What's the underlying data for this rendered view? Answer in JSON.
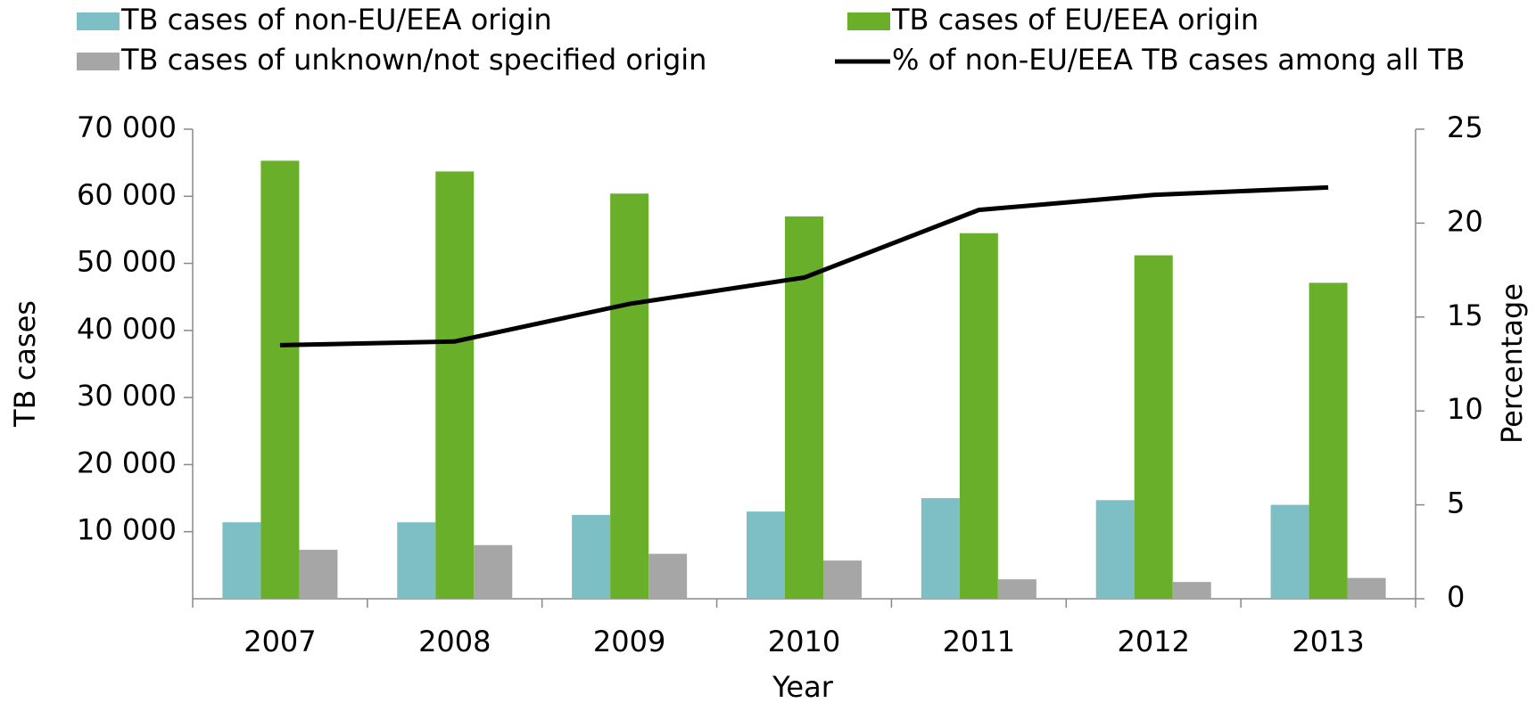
{
  "chart_data": {
    "type": "bar",
    "x_label": "Year",
    "y_label": "TB cases",
    "y2_label": "Percentage",
    "categories": [
      "2007",
      "2008",
      "2009",
      "2010",
      "2011",
      "2012",
      "2013"
    ],
    "series": [
      {
        "name": "TB cases of non-EU/EEA origin",
        "color": "#7dbfc4",
        "values": [
          11400,
          11400,
          12500,
          13000,
          15000,
          14700,
          14000
        ]
      },
      {
        "name": "TB cases of EU/EEA origin",
        "color": "#6aaf2a",
        "values": [
          65300,
          63700,
          60400,
          57000,
          54500,
          51200,
          47100
        ]
      },
      {
        "name": "TB cases of unknown/not specified origin",
        "color": "#a6a6a6",
        "values": [
          7300,
          8000,
          6700,
          5700,
          2900,
          2500,
          3100
        ]
      },
      {
        "name": "% of non-EU/EEA TB cases among all TB",
        "color": "#000000",
        "type": "line",
        "axis": "y2",
        "values": [
          13.5,
          13.7,
          15.7,
          17.1,
          20.7,
          21.5,
          21.9
        ]
      }
    ],
    "ylim": [
      0,
      70000
    ],
    "yticks": [
      {
        "value": 10000,
        "label": "10 000"
      },
      {
        "value": 20000,
        "label": "20 000"
      },
      {
        "value": 30000,
        "label": "30 000"
      },
      {
        "value": 40000,
        "label": "40 000"
      },
      {
        "value": 50000,
        "label": "50 000"
      },
      {
        "value": 60000,
        "label": "60 000"
      },
      {
        "value": 70000,
        "label": "70 000"
      }
    ],
    "y2lim": [
      0,
      25
    ],
    "y2ticks": [
      0,
      5,
      10,
      15,
      20,
      25
    ]
  }
}
